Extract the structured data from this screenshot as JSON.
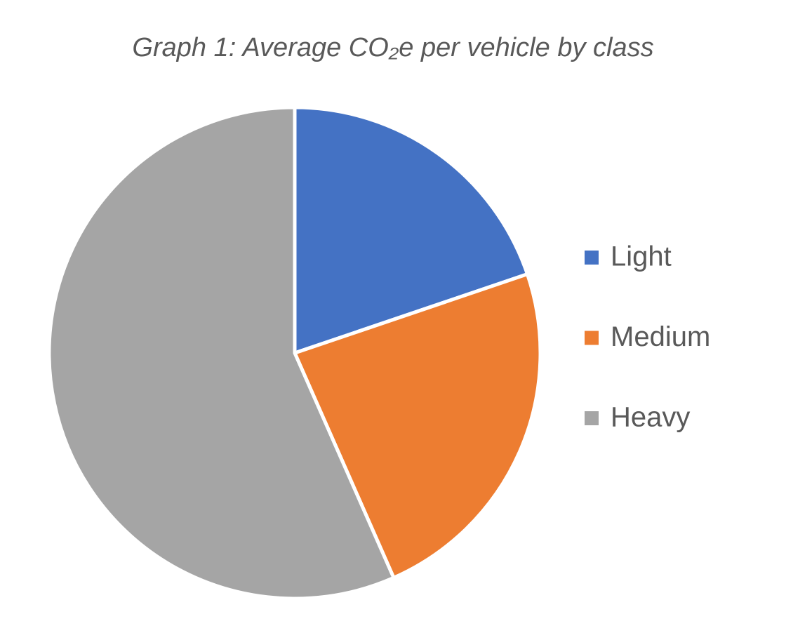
{
  "chart_data": {
    "type": "pie",
    "title": "Graph 1: Average CO₂e per vehicle by class",
    "categories": [
      "Light",
      "Medium",
      "Heavy"
    ],
    "values": [
      19.8,
      23.6,
      56.6
    ],
    "colors": [
      "#4472c4",
      "#ed7d31",
      "#a5a5a5"
    ],
    "legend": "right"
  }
}
